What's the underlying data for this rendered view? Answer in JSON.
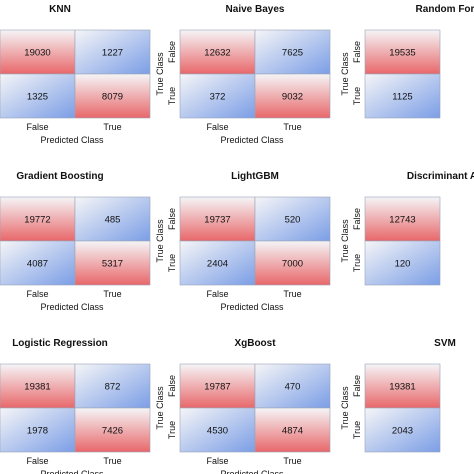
{
  "colors": {
    "red": "#e8676a",
    "blue": "#7b9ee6",
    "light": "#f5f5f7"
  },
  "chart_data": [
    {
      "type": "heatmap",
      "title": "KNN",
      "xlabel": "Predicted Class",
      "ylabel": "",
      "x_ticks": [
        "False",
        "True"
      ],
      "y_ticks": [
        "",
        ""
      ],
      "values": [
        [
          19030,
          1227
        ],
        [
          1325,
          8079
        ]
      ]
    },
    {
      "type": "heatmap",
      "title": "Naive Bayes",
      "xlabel": "Predicted Class",
      "ylabel": "True Class",
      "x_ticks": [
        "False",
        "True"
      ],
      "y_ticks": [
        "False",
        "True"
      ],
      "values": [
        [
          12632,
          7625
        ],
        [
          372,
          9032
        ]
      ]
    },
    {
      "type": "heatmap",
      "title": "Random For",
      "xlabel": "",
      "ylabel": "True Class",
      "x_ticks": [
        "",
        ""
      ],
      "y_ticks": [
        "False",
        "True"
      ],
      "values": [
        [
          19535,
          null
        ],
        [
          1125,
          null
        ]
      ]
    },
    {
      "type": "heatmap",
      "title": "Gradient Boosting",
      "xlabel": "Predicted Class",
      "ylabel": "",
      "x_ticks": [
        "False",
        "True"
      ],
      "y_ticks": [
        "",
        ""
      ],
      "values": [
        [
          19772,
          485
        ],
        [
          4087,
          5317
        ]
      ]
    },
    {
      "type": "heatmap",
      "title": "LightGBM",
      "xlabel": "Predicted Class",
      "ylabel": "True Class",
      "x_ticks": [
        "False",
        "True"
      ],
      "y_ticks": [
        "False",
        "True"
      ],
      "values": [
        [
          19737,
          520
        ],
        [
          2404,
          7000
        ]
      ]
    },
    {
      "type": "heatmap",
      "title": "Discriminant An",
      "xlabel": "",
      "ylabel": "True Class",
      "x_ticks": [
        "",
        ""
      ],
      "y_ticks": [
        "False",
        "True"
      ],
      "values": [
        [
          12743,
          null
        ],
        [
          120,
          null
        ]
      ]
    },
    {
      "type": "heatmap",
      "title": "Logistic Regression",
      "xlabel": "Predicted Class",
      "ylabel": "",
      "x_ticks": [
        "False",
        "True"
      ],
      "y_ticks": [
        "",
        ""
      ],
      "values": [
        [
          19381,
          872
        ],
        [
          1978,
          7426
        ]
      ]
    },
    {
      "type": "heatmap",
      "title": "XgBoost",
      "xlabel": "Predicted Class",
      "ylabel": "True Class",
      "x_ticks": [
        "False",
        "True"
      ],
      "y_ticks": [
        "False",
        "True"
      ],
      "values": [
        [
          19787,
          470
        ],
        [
          4530,
          4874
        ]
      ]
    },
    {
      "type": "heatmap",
      "title": "SVM",
      "xlabel": "",
      "ylabel": "True Class",
      "x_ticks": [
        "",
        ""
      ],
      "y_ticks": [
        "False",
        "True"
      ],
      "values": [
        [
          19381,
          null
        ],
        [
          2043,
          null
        ]
      ]
    }
  ]
}
